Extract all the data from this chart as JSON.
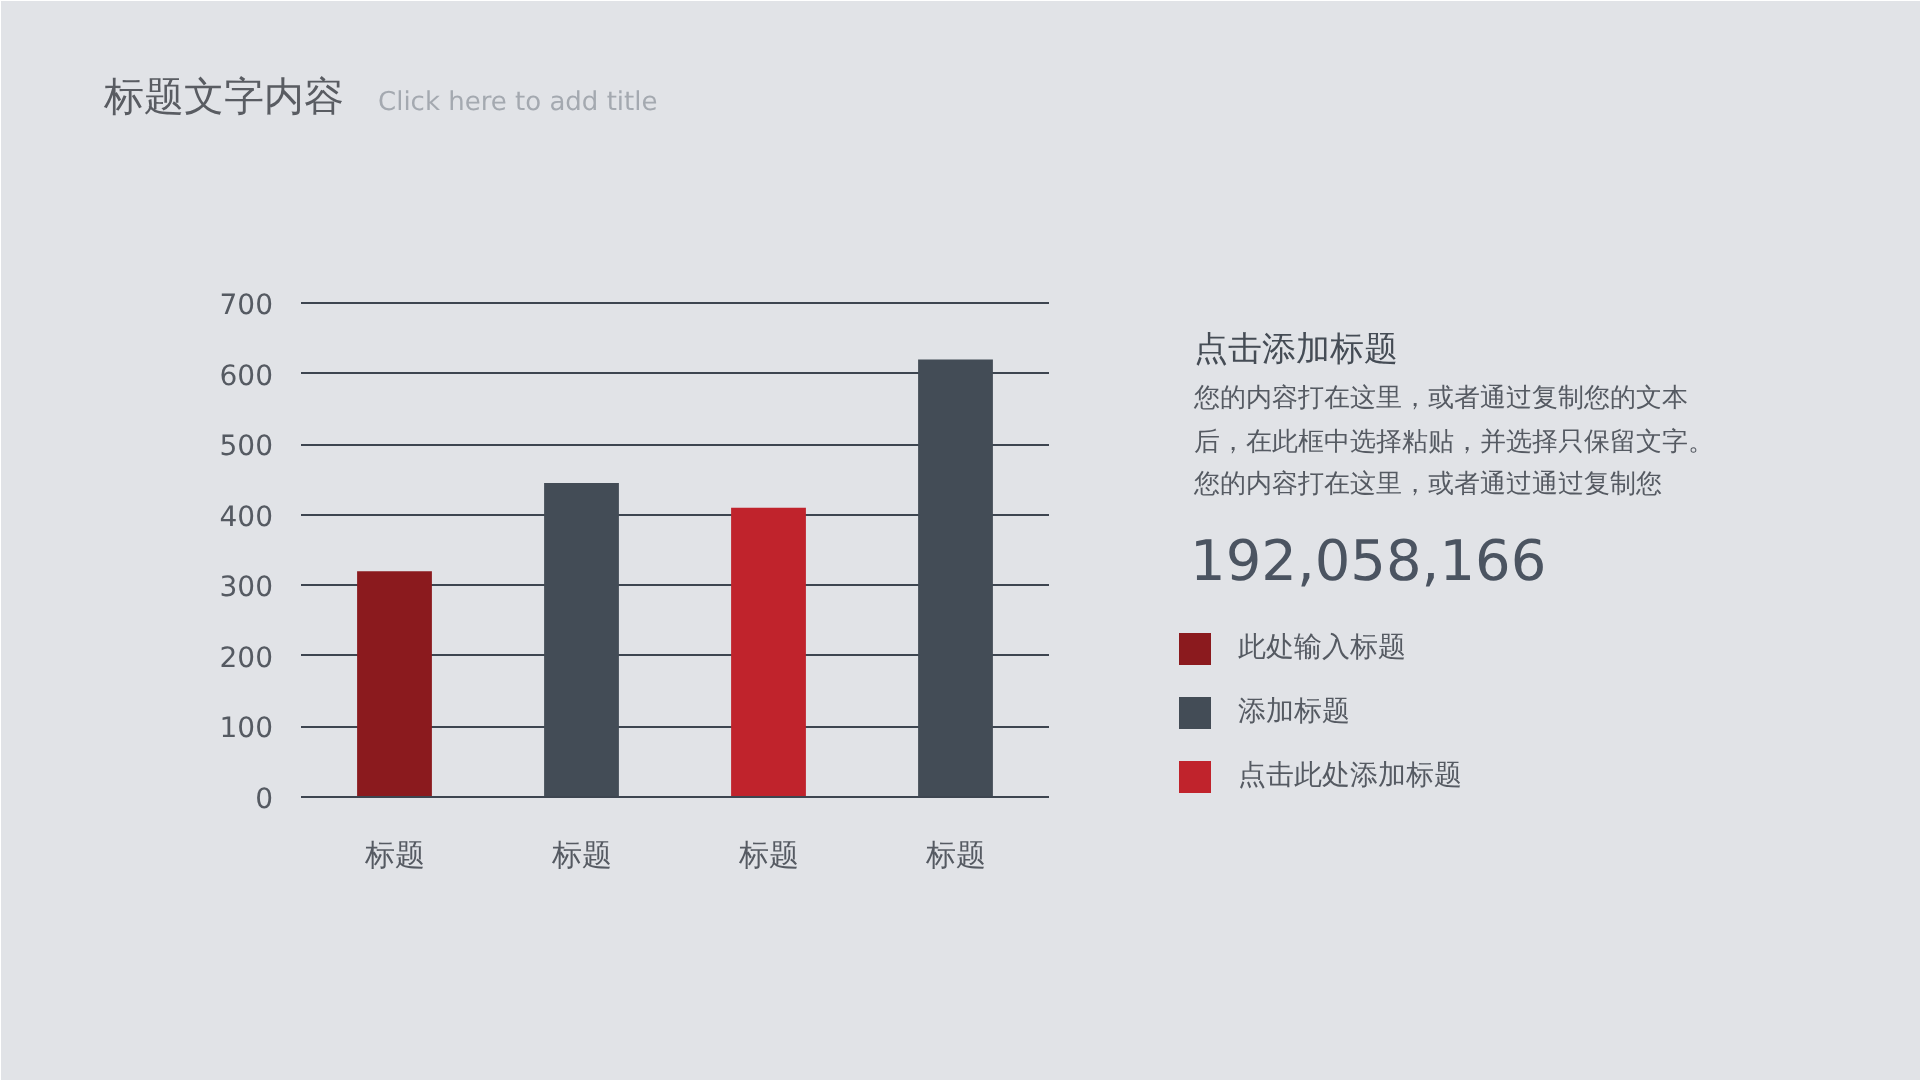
{
  "chart_data": {
    "type": "bar",
    "title": "标题文字内容",
    "subtitle": "Click here to add title",
    "categories": [
      "标题",
      "标题",
      "标题",
      "标题"
    ],
    "series": [
      {
        "name": "此处输入标题",
        "color": "#8b1a1e",
        "values": [
          320,
          null,
          null,
          null
        ]
      },
      {
        "name": "添加标题",
        "color": "#434c56",
        "values": [
          null,
          445,
          null,
          620
        ]
      },
      {
        "name": "点击此处添加标题",
        "color": "#c0232c",
        "values": [
          null,
          null,
          410,
          null
        ]
      }
    ],
    "ylim": [
      0,
      700
    ],
    "yticks": [
      0,
      100,
      200,
      300,
      400,
      500,
      600,
      700
    ],
    "grid": "y",
    "legend": "right",
    "annotations": [
      "点击添加标题",
      "您的内容打在这里，或者通过复制您的文本",
      "后，在此框中选择粘贴，并选择只保留文字。",
      "您的内容打在这里，或者通过通过复制您",
      "192,058,166"
    ]
  }
}
